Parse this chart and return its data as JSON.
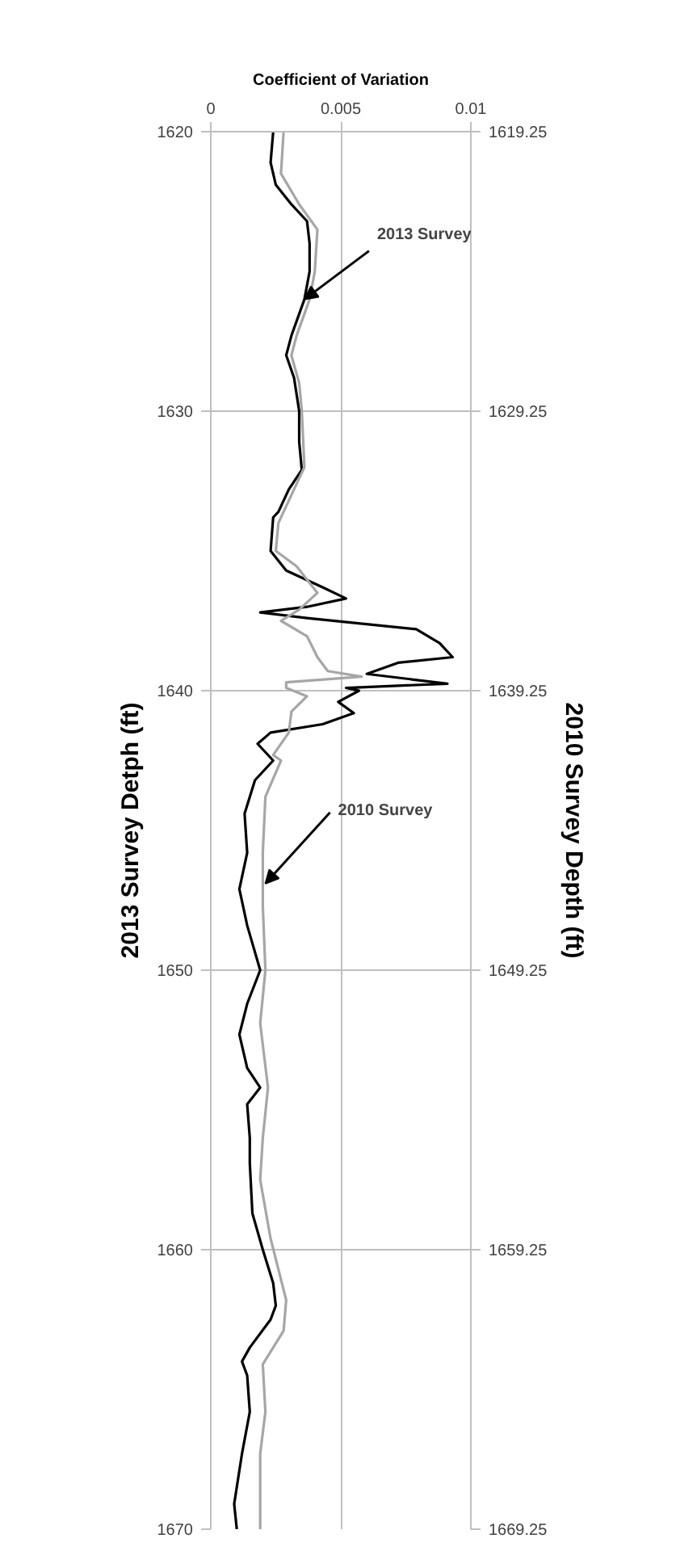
{
  "chart_data": {
    "type": "line",
    "xlabel": "Coefficient of Variation",
    "ylabel": "2013 Survey Detph (ft)",
    "y2label": "2010 Survey Depth (ft)",
    "xlim": [
      0,
      0.01
    ],
    "xticks": [
      0,
      0.005,
      0.01
    ],
    "ylim": [
      1670,
      1620
    ],
    "yticks": [
      1620,
      1630,
      1640,
      1650,
      1660,
      1670
    ],
    "y2lim": [
      1669.25,
      1619.25
    ],
    "y2ticks": [
      1619.25,
      1629.25,
      1639.25,
      1649.25,
      1659.25,
      1669.25
    ],
    "grid": true,
    "line_style": "solid",
    "marker": "none",
    "series": [
      {
        "color": "#000000",
        "x": [
          0.0024,
          0.0023,
          0.0025,
          0.0031,
          0.0037,
          0.0038,
          0.0038,
          0.0036,
          0.0031,
          0.0029,
          0.0032,
          0.0034,
          0.0034,
          0.0035,
          0.003,
          0.0026,
          0.0024,
          0.0023,
          0.0029,
          0.0043,
          0.0052,
          0.0037,
          0.0019,
          0.0037,
          0.0079,
          0.0088,
          0.0093,
          0.0072,
          0.006,
          0.0091,
          0.0052,
          0.0057,
          0.0049,
          0.0055,
          0.0043,
          0.0023,
          0.0018,
          0.0024,
          0.0017,
          0.0013,
          0.0014,
          0.0011,
          0.0014,
          0.0019,
          0.0014,
          0.0011,
          0.0014,
          0.0019,
          0.0014,
          0.0015,
          0.0015,
          0.0016,
          0.002,
          0.0024,
          0.0025,
          0.0023,
          0.0015,
          0.0012,
          0.0014,
          0.0015,
          0.0012,
          0.0009,
          0.001
        ],
        "values": [
          1620,
          1621.1,
          1621.9,
          1622.6,
          1623.2,
          1624,
          1625,
          1626,
          1627.3,
          1628,
          1628.8,
          1630,
          1631.1,
          1632.1,
          1632.8,
          1633.6,
          1633.8,
          1635,
          1635.7,
          1636.3,
          1636.7,
          1637,
          1637.2,
          1637.4,
          1637.8,
          1638.3,
          1638.8,
          1639,
          1639.4,
          1639.75,
          1639.9,
          1640,
          1640.4,
          1640.8,
          1641.2,
          1641.5,
          1641.9,
          1642.5,
          1643.2,
          1644.4,
          1645.8,
          1647.1,
          1648.4,
          1650,
          1651.2,
          1652.3,
          1653.5,
          1654.2,
          1654.8,
          1656,
          1656.9,
          1658.7,
          1660,
          1661.2,
          1662,
          1662.5,
          1663.5,
          1664,
          1664.5,
          1665.8,
          1667.3,
          1669.1,
          1670
        ]
      },
      {
        "color": "#a6a6a6",
        "axis": "y2",
        "x": [
          0.0028,
          0.0027,
          0.0034,
          0.0041,
          0.004,
          0.0038,
          0.0033,
          0.0031,
          0.0034,
          0.0035,
          0.0036,
          0.0031,
          0.0026,
          0.0025,
          0.0033,
          0.0041,
          0.0034,
          0.0027,
          0.0037,
          0.0041,
          0.0045,
          0.0058,
          0.0029,
          0.0029,
          0.0037,
          0.0031,
          0.003,
          0.0024,
          0.0027,
          0.0021,
          0.002,
          0.002,
          0.0021,
          0.0019,
          0.0022,
          0.002,
          0.0019,
          0.0023,
          0.0029,
          0.0028,
          0.002,
          0.0021,
          0.0019,
          0.0019
        ],
        "values": [
          1619.25,
          1620.75,
          1621.85,
          1622.75,
          1624.25,
          1625.25,
          1626.55,
          1627.25,
          1628.25,
          1629.25,
          1631.25,
          1632.25,
          1633.25,
          1634.25,
          1634.8,
          1635.75,
          1636.35,
          1636.75,
          1637.3,
          1638.05,
          1638.55,
          1638.75,
          1638.95,
          1639.15,
          1639.45,
          1640,
          1640.75,
          1641.55,
          1641.75,
          1643.05,
          1645.05,
          1646.95,
          1649.25,
          1651.15,
          1653.45,
          1655.25,
          1656.75,
          1658.85,
          1661.05,
          1662.15,
          1663.35,
          1665.05,
          1666.55,
          1669.25
        ]
      }
    ],
    "annotations": [
      {
        "text": "2013 Survey",
        "x": 0.0036,
        "y": 1626
      },
      {
        "text": "2010 Survey",
        "x": 0.0021,
        "y": 1646.9
      }
    ]
  }
}
